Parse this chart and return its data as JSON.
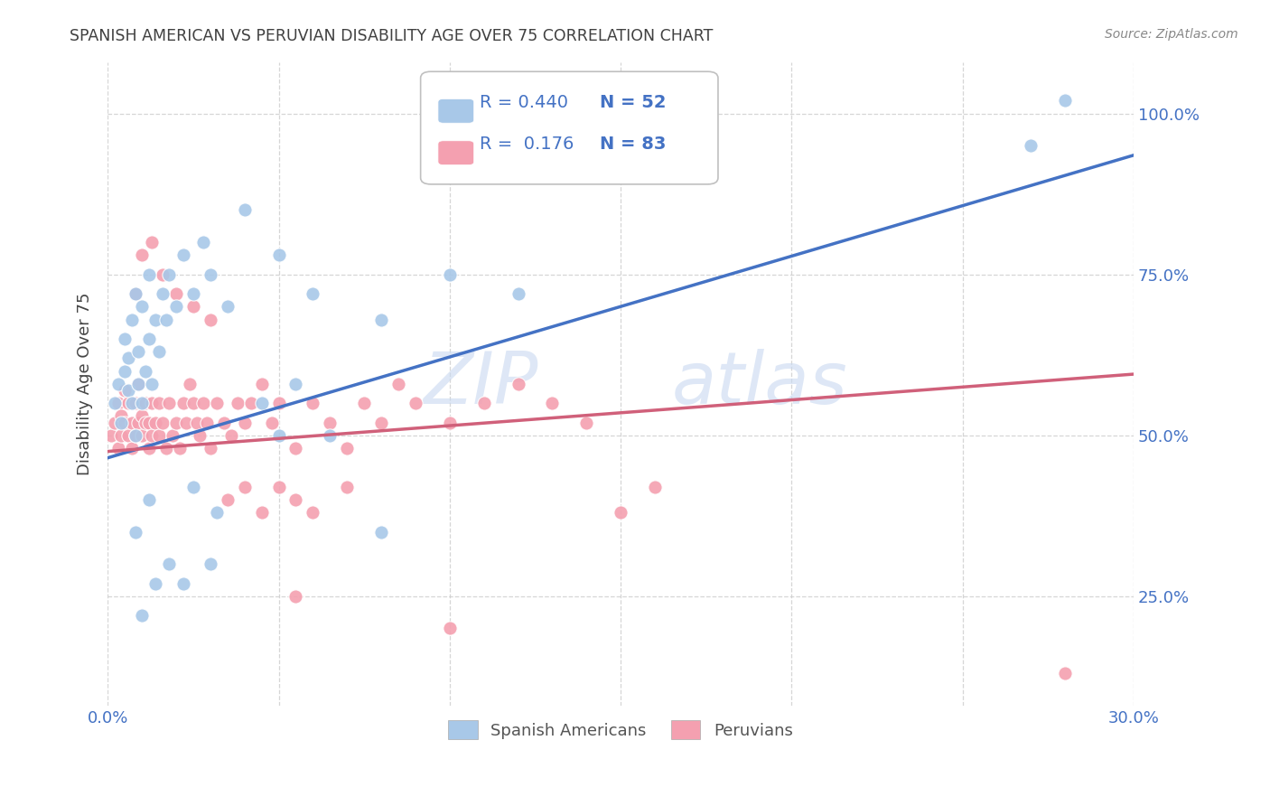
{
  "title": "SPANISH AMERICAN VS PERUVIAN DISABILITY AGE OVER 75 CORRELATION CHART",
  "source": "Source: ZipAtlas.com",
  "ylabel": "Disability Age Over 75",
  "ytick_labels": [
    "25.0%",
    "50.0%",
    "75.0%",
    "100.0%"
  ],
  "watermark_zip": "ZIP",
  "watermark_atlas": "atlas",
  "legend_blue_r": "R = 0.440",
  "legend_blue_n": "N = 52",
  "legend_pink_r": "R =  0.176",
  "legend_pink_n": "N = 83",
  "blue_color": "#a8c8e8",
  "pink_color": "#f4a0b0",
  "line_blue": "#4472c4",
  "line_pink": "#d0607a",
  "tick_label_color": "#4472c4",
  "title_color": "#404040",
  "grid_color": "#cccccc",
  "xlim": [
    0.0,
    0.3
  ],
  "ylim": [
    0.08,
    1.08
  ],
  "blue_scatter_x": [
    0.002,
    0.003,
    0.004,
    0.005,
    0.005,
    0.006,
    0.006,
    0.007,
    0.007,
    0.008,
    0.008,
    0.009,
    0.009,
    0.01,
    0.01,
    0.011,
    0.012,
    0.012,
    0.013,
    0.014,
    0.015,
    0.016,
    0.017,
    0.018,
    0.02,
    0.022,
    0.025,
    0.028,
    0.03,
    0.035,
    0.04,
    0.05,
    0.06,
    0.08,
    0.1,
    0.12,
    0.008,
    0.012,
    0.018,
    0.025,
    0.032,
    0.045,
    0.055,
    0.065,
    0.08,
    0.01,
    0.014,
    0.022,
    0.03,
    0.05,
    0.27,
    0.28
  ],
  "blue_scatter_y": [
    0.55,
    0.58,
    0.52,
    0.6,
    0.65,
    0.57,
    0.62,
    0.55,
    0.68,
    0.5,
    0.72,
    0.58,
    0.63,
    0.55,
    0.7,
    0.6,
    0.65,
    0.75,
    0.58,
    0.68,
    0.63,
    0.72,
    0.68,
    0.75,
    0.7,
    0.78,
    0.72,
    0.8,
    0.75,
    0.7,
    0.85,
    0.78,
    0.72,
    0.68,
    0.75,
    0.72,
    0.35,
    0.4,
    0.3,
    0.42,
    0.38,
    0.55,
    0.58,
    0.5,
    0.35,
    0.22,
    0.27,
    0.27,
    0.3,
    0.5,
    0.95,
    1.02
  ],
  "pink_scatter_x": [
    0.001,
    0.002,
    0.003,
    0.003,
    0.004,
    0.004,
    0.005,
    0.005,
    0.006,
    0.006,
    0.007,
    0.007,
    0.008,
    0.008,
    0.009,
    0.009,
    0.01,
    0.01,
    0.011,
    0.011,
    0.012,
    0.012,
    0.013,
    0.013,
    0.014,
    0.015,
    0.015,
    0.016,
    0.017,
    0.018,
    0.019,
    0.02,
    0.021,
    0.022,
    0.023,
    0.024,
    0.025,
    0.026,
    0.027,
    0.028,
    0.029,
    0.03,
    0.032,
    0.034,
    0.036,
    0.038,
    0.04,
    0.042,
    0.045,
    0.048,
    0.05,
    0.055,
    0.06,
    0.065,
    0.07,
    0.075,
    0.08,
    0.085,
    0.09,
    0.1,
    0.11,
    0.12,
    0.13,
    0.14,
    0.008,
    0.01,
    0.013,
    0.016,
    0.02,
    0.025,
    0.03,
    0.035,
    0.04,
    0.045,
    0.05,
    0.055,
    0.06,
    0.07,
    0.15,
    0.16,
    0.055,
    0.1,
    0.28
  ],
  "pink_scatter_y": [
    0.5,
    0.52,
    0.48,
    0.55,
    0.5,
    0.53,
    0.52,
    0.57,
    0.5,
    0.55,
    0.48,
    0.52,
    0.5,
    0.55,
    0.52,
    0.58,
    0.5,
    0.53,
    0.52,
    0.55,
    0.48,
    0.52,
    0.5,
    0.55,
    0.52,
    0.5,
    0.55,
    0.52,
    0.48,
    0.55,
    0.5,
    0.52,
    0.48,
    0.55,
    0.52,
    0.58,
    0.55,
    0.52,
    0.5,
    0.55,
    0.52,
    0.48,
    0.55,
    0.52,
    0.5,
    0.55,
    0.52,
    0.55,
    0.58,
    0.52,
    0.55,
    0.48,
    0.55,
    0.52,
    0.48,
    0.55,
    0.52,
    0.58,
    0.55,
    0.52,
    0.55,
    0.58,
    0.55,
    0.52,
    0.72,
    0.78,
    0.8,
    0.75,
    0.72,
    0.7,
    0.68,
    0.4,
    0.42,
    0.38,
    0.42,
    0.4,
    0.38,
    0.42,
    0.38,
    0.42,
    0.25,
    0.2,
    0.13
  ],
  "blue_line_x": [
    0.0,
    0.3
  ],
  "blue_line_y": [
    0.465,
    0.935
  ],
  "pink_line_x": [
    0.0,
    0.3
  ],
  "pink_line_y": [
    0.475,
    0.595
  ],
  "legend_labels": [
    "Spanish Americans",
    "Peruvians"
  ]
}
